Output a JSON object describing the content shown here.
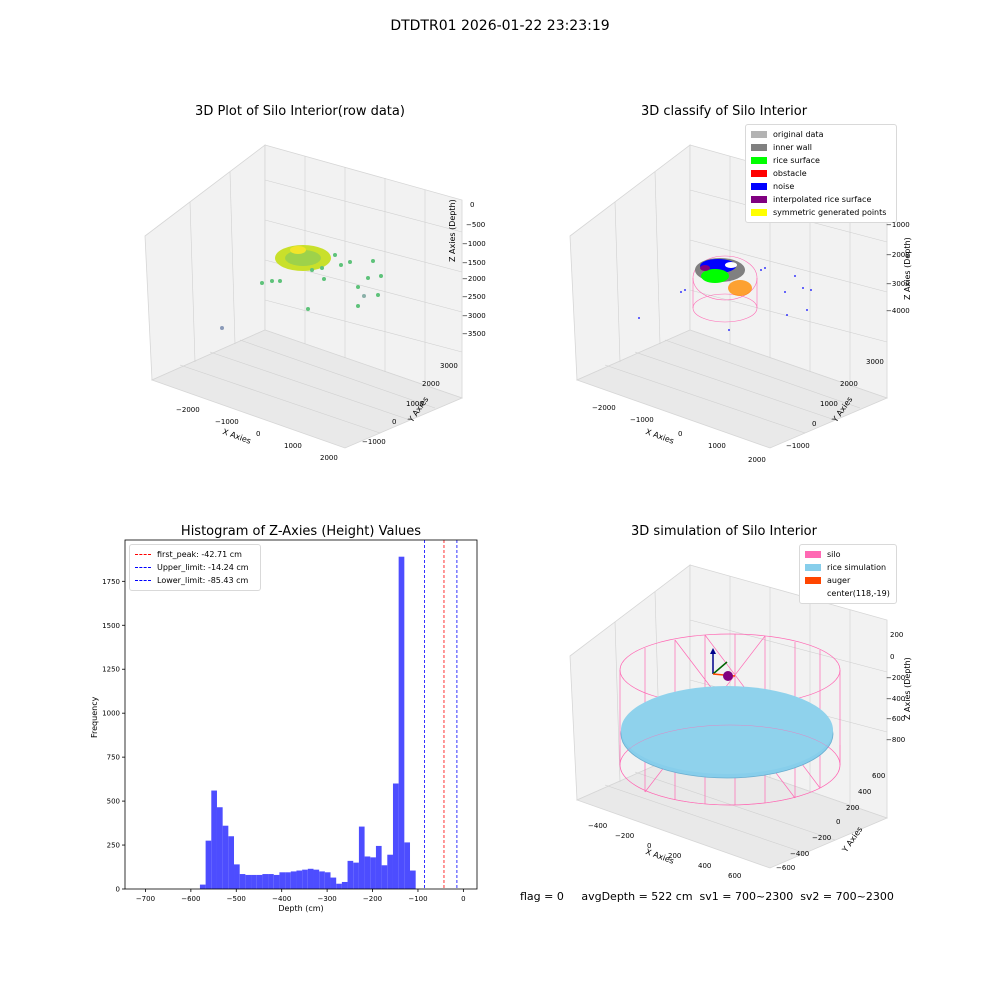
{
  "suptitle": "DTDTR01 2026-01-22 23:23:19",
  "footer": "flag = 0     avgDepth = 522 cm  sv1 = 700~2300  sv2 = 700~2300",
  "colors": {
    "original": "#b3b3b3",
    "inner_wall": "#808080",
    "rice_surface": "#00ff00",
    "obstacle": "#ff0000",
    "noise": "#0000ff",
    "interp": "#800080",
    "symm": "#ffff00",
    "silo": "#ff69b4",
    "rice_sim": "#87ceeb",
    "auger": "#ff4500",
    "hist_bar": "#4d4dff"
  },
  "chart_data": [
    {
      "type": "scatter",
      "title": "3D Plot of Silo Interior(row data)",
      "xlabel": "X Axies",
      "ylabel": "Y Axies",
      "zlabel": "Z Axies (Depth)",
      "x_ticks": [
        "−2000",
        "−1000",
        "0",
        "1000",
        "2000"
      ],
      "y_ticks": [
        "−1000",
        "0",
        "1000",
        "2000",
        "3000"
      ],
      "z_ticks": [
        "0",
        "−500",
        "−1000",
        "−1500",
        "−2000",
        "−2500",
        "−3000",
        "−3500"
      ]
    },
    {
      "type": "scatter",
      "title": "3D classify of Silo Interior",
      "xlabel": "X Axies",
      "ylabel": "Y Axies",
      "zlabel": "Z Axies (Depth)",
      "x_ticks": [
        "−2000",
        "−1000",
        "0",
        "1000",
        "2000"
      ],
      "y_ticks": [
        "−1000",
        "0",
        "1000",
        "2000",
        "3000"
      ],
      "z_ticks": [
        "−1000",
        "−2000",
        "−3000",
        "−4000"
      ],
      "legend": [
        "original data",
        "inner wall",
        "rice surface",
        "obstacle",
        "noise",
        "interpolated rice surface",
        "symmetric generated points"
      ]
    },
    {
      "type": "bar",
      "title": "Histogram of Z-Axies (Height) Values",
      "xlabel": "Depth (cm)",
      "ylabel": "Frequency",
      "xlim": [
        -745,
        30
      ],
      "ylim": [
        0,
        1985
      ],
      "x_ticks": [
        -700,
        -600,
        -500,
        -400,
        -300,
        -200,
        -100,
        0
      ],
      "x_tick_labels": [
        "−700",
        "−600",
        "−500",
        "−400",
        "−300",
        "−200",
        "−100",
        "0"
      ],
      "y_ticks": [
        0,
        250,
        500,
        750,
        1000,
        1250,
        1500,
        1750
      ],
      "y_tick_labels": [
        "0",
        "250",
        "500",
        "750",
        "1000",
        "1250",
        "1500",
        "1750"
      ],
      "bin_start": -580,
      "bin_width": 12.5,
      "values": [
        25,
        275,
        560,
        465,
        360,
        300,
        140,
        85,
        80,
        80,
        80,
        85,
        85,
        80,
        95,
        95,
        100,
        105,
        110,
        115,
        110,
        100,
        95,
        65,
        30,
        40,
        160,
        150,
        355,
        185,
        180,
        245,
        135,
        195,
        600,
        1890,
        265,
        105
      ],
      "vlines": [
        {
          "x": -42.71,
          "color": "#ff0000",
          "label": "first_peak: -42.71 cm"
        },
        {
          "x": -14.24,
          "color": "#0000ff",
          "label": "Upper_limit: -14.24 cm"
        },
        {
          "x": -85.43,
          "color": "#0000ff",
          "label": "Lower_limit: -85.43 cm"
        }
      ]
    },
    {
      "type": "scatter",
      "title": "3D simulation of Silo Interior",
      "xlabel": "X Axies",
      "ylabel": "Y Axies",
      "zlabel": "Z Axies (Depth)",
      "x_ticks": [
        "−400",
        "−200",
        "0",
        "200",
        "400",
        "600"
      ],
      "y_ticks": [
        "−600",
        "−400",
        "−200",
        "0",
        "200",
        "400",
        "600"
      ],
      "z_ticks": [
        "200",
        "0",
        "−200",
        "−400",
        "−600",
        "−800"
      ],
      "legend": [
        "silo",
        "rice simulation",
        "auger",
        "center(118,-19)"
      ]
    }
  ]
}
